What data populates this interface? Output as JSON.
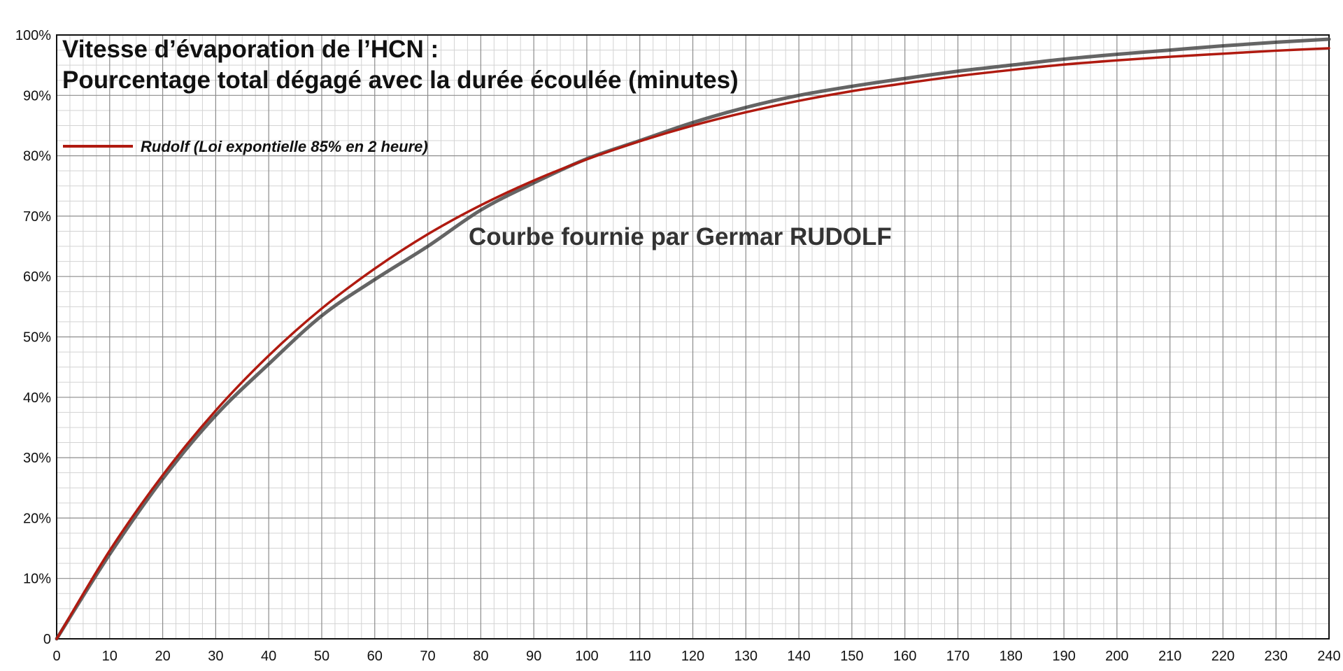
{
  "chart_data": {
    "type": "line",
    "title": "Vitesse d’évaporation de l’HCN :",
    "subtitle": "Pourcentage total dégagé avec la durée écoulée (minutes)",
    "annotation": "Courbe fournie par Germar RUDOLF",
    "xlabel": "",
    "ylabel": "",
    "xlim": [
      0,
      240
    ],
    "ylim": [
      0,
      100
    ],
    "x_ticks": [
      0,
      10,
      20,
      30,
      40,
      50,
      60,
      70,
      80,
      90,
      100,
      110,
      120,
      130,
      140,
      150,
      160,
      170,
      180,
      190,
      200,
      210,
      220,
      230,
      240
    ],
    "x_tick_labels": [
      "0",
      "10",
      "20",
      "30",
      "40",
      "50",
      "60",
      "70",
      "80",
      "90",
      "100",
      "110",
      "120",
      "130",
      "140",
      "150",
      "160",
      "170",
      "180",
      "190",
      "200",
      "210",
      "220",
      "230",
      "240"
    ],
    "y_ticks": [
      0,
      10,
      20,
      30,
      40,
      50,
      60,
      70,
      80,
      90,
      100
    ],
    "y_tick_labels": [
      "0",
      "10%",
      "20%",
      "30%",
      "40%",
      "50%",
      "60%",
      "70%",
      "80%",
      "90%",
      "100%"
    ],
    "grid": true,
    "legend_position": "top-left",
    "series": [
      {
        "key": "measured",
        "color": "#4a4a4a",
        "x": [
          0,
          10,
          20,
          30,
          40,
          50,
          60,
          70,
          80,
          90,
          100,
          110,
          120,
          130,
          140,
          150,
          160,
          170,
          180,
          190,
          200,
          210,
          220,
          230,
          240
        ],
        "values": [
          0,
          14,
          26.5,
          37,
          45.5,
          53.5,
          59.5,
          65,
          71,
          75.5,
          79.5,
          82.5,
          85.5,
          88,
          90,
          91.5,
          92.8,
          94,
          95,
          96,
          96.8,
          97.5,
          98.2,
          98.8,
          99.3
        ]
      },
      {
        "name": "Rudolf (Loi expontielle 85% en 2 heure)",
        "key": "rudolf",
        "color": "#b01a10",
        "x": [
          0,
          10,
          20,
          30,
          40,
          50,
          60,
          70,
          80,
          90,
          100,
          110,
          120,
          130,
          140,
          150,
          160,
          170,
          180,
          190,
          200,
          210,
          220,
          230,
          240
        ],
        "values": [
          0,
          14.6,
          27.1,
          37.8,
          46.9,
          54.7,
          61.3,
          67.0,
          71.8,
          75.9,
          79.4,
          82.4,
          85.0,
          87.2,
          89.1,
          90.7,
          92.0,
          93.2,
          94.2,
          95.1,
          95.8,
          96.4,
          96.9,
          97.4,
          97.8
        ]
      }
    ]
  }
}
